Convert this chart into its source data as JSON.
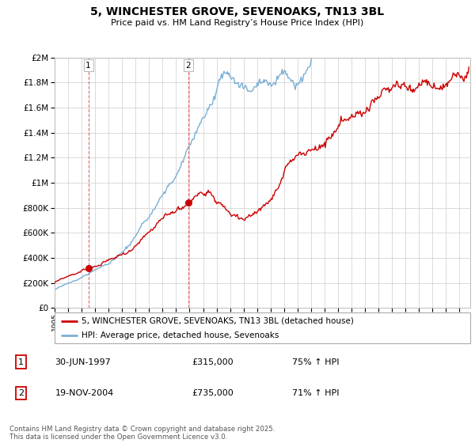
{
  "title": "5, WINCHESTER GROVE, SEVENOAKS, TN13 3BL",
  "subtitle": "Price paid vs. HM Land Registry’s House Price Index (HPI)",
  "red_label": "5, WINCHESTER GROVE, SEVENOAKS, TN13 3BL (detached house)",
  "blue_label": "HPI: Average price, detached house, Sevenoaks",
  "sale1_date": "30-JUN-1997",
  "sale1_price": "£315,000",
  "sale1_hpi": "75% ↑ HPI",
  "sale2_date": "19-NOV-2004",
  "sale2_price": "£735,000",
  "sale2_hpi": "71% ↑ HPI",
  "footer": "Contains HM Land Registry data © Crown copyright and database right 2025.\nThis data is licensed under the Open Government Licence v3.0.",
  "red_color": "#cc0000",
  "blue_color": "#7aafd4",
  "grid_color": "#cccccc",
  "sale1_x": 1997.5,
  "sale2_x": 2004.9,
  "ylim": [
    0,
    2000000
  ],
  "xlim_start": 1995.0,
  "xlim_end": 2025.8
}
